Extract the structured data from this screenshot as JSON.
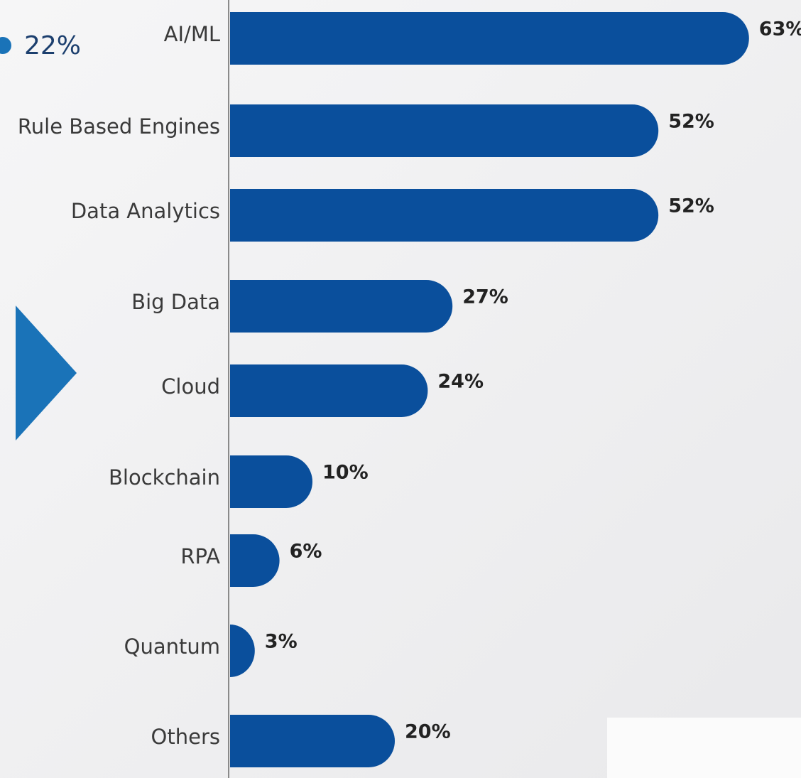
{
  "chart_data": {
    "type": "bar",
    "orientation": "horizontal",
    "annotation": "22%",
    "categories": [
      "AI/ML",
      "Rule Based Engines",
      "Data Analytics",
      "Big Data",
      "Cloud",
      "Blockchain",
      "RPA",
      "Quantum",
      "Others"
    ],
    "values": [
      63,
      52,
      52,
      27,
      24,
      10,
      6,
      3,
      20
    ],
    "value_labels": [
      "63%",
      "52%",
      "52%",
      "27%",
      "24%",
      "10%",
      "6%",
      "3%",
      "20%"
    ],
    "color": "#0a4f9c"
  }
}
